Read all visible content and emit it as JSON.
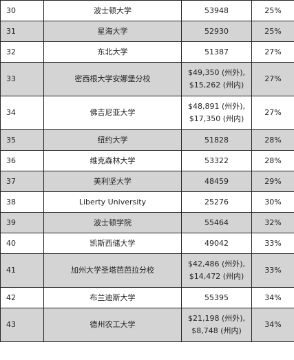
{
  "rows": [
    {
      "rank": "30",
      "school": "波士顿大学",
      "tuition": [
        "53948"
      ],
      "rate": "25%"
    },
    {
      "rank": "31",
      "school": "星海大学",
      "tuition": [
        "52930"
      ],
      "rate": "25%"
    },
    {
      "rank": "32",
      "school": "东北大学",
      "tuition": [
        "51387"
      ],
      "rate": "27%"
    },
    {
      "rank": "33",
      "school": "密西根大学安娜堡分校",
      "tuition": [
        "$49,350 (州外),",
        "$15,262 (州内)"
      ],
      "rate": "27%"
    },
    {
      "rank": "34",
      "school": "佛吉尼亚大学",
      "tuition": [
        "$48,891 (州外),",
        "$17,350 (州内)"
      ],
      "rate": "27%"
    },
    {
      "rank": "35",
      "school": "纽约大学",
      "tuition": [
        "51828"
      ],
      "rate": "28%"
    },
    {
      "rank": "36",
      "school": "维克森林大学",
      "tuition": [
        "53322"
      ],
      "rate": "28%"
    },
    {
      "rank": "37",
      "school": "美利坚大学",
      "tuition": [
        "48459"
      ],
      "rate": "29%"
    },
    {
      "rank": "38",
      "school": "Liberty University",
      "tuition": [
        "25276"
      ],
      "rate": "30%"
    },
    {
      "rank": "39",
      "school": "波士顿学院",
      "tuition": [
        "55464"
      ],
      "rate": "32%"
    },
    {
      "rank": "40",
      "school": "凯斯西储大学",
      "tuition": [
        "49042"
      ],
      "rate": "33%"
    },
    {
      "rank": "41",
      "school": "加州大学圣塔芭芭拉分校",
      "tuition": [
        "$42,486 (州外),",
        "$14,472 (州内)"
      ],
      "rate": "33%"
    },
    {
      "rank": "42",
      "school": "布兰迪斯大学",
      "tuition": [
        "55395"
      ],
      "rate": "34%"
    },
    {
      "rank": "43",
      "school": "德州农工大学",
      "tuition": [
        "$21,198 (州外),",
        "$8,748 (州内)"
      ],
      "rate": "34%"
    }
  ]
}
